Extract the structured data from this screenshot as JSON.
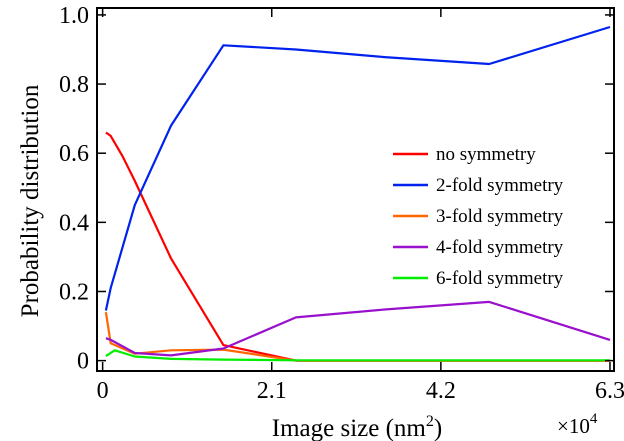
{
  "chart_data": {
    "type": "line",
    "xlabel": "Image size (nm",
    "xlabel_sup": "2",
    "xlabel_close": ")",
    "ylabel": "Probability distribution",
    "x_multiplier": "×10",
    "x_multiplier_sup": "4",
    "xlim": [
      -0.07,
      6.35
    ],
    "ylim": [
      -0.03,
      1.02
    ],
    "x_ticks": [
      0,
      2.1,
      4.2,
      6.3
    ],
    "x_tick_labels": [
      "0",
      "2.1",
      "4.2",
      "6.3"
    ],
    "y_ticks": [
      0,
      0.2,
      0.4,
      0.6,
      0.8,
      1.0
    ],
    "y_tick_labels": [
      "0",
      "0.2",
      "0.4",
      "0.6",
      "0.8",
      "1.0"
    ],
    "grid": false,
    "legend_position": "center-right",
    "series": [
      {
        "name": "no symmetry",
        "color": "#ff0000",
        "points": [
          [
            0.04,
            0.66
          ],
          [
            0.1,
            0.65
          ],
          [
            0.25,
            0.59
          ],
          [
            0.4,
            0.52
          ],
          [
            0.85,
            0.295
          ],
          [
            1.5,
            0.045
          ],
          [
            2.4,
            0.0
          ],
          [
            3.5,
            0.0
          ],
          [
            4.8,
            0.0
          ],
          [
            6.3,
            0.0
          ]
        ]
      },
      {
        "name": "2-fold symmetry",
        "color": "#0022ee",
        "points": [
          [
            0.04,
            0.145
          ],
          [
            0.1,
            0.21
          ],
          [
            0.4,
            0.45
          ],
          [
            0.85,
            0.68
          ],
          [
            1.5,
            0.912
          ],
          [
            2.4,
            0.9
          ],
          [
            3.5,
            0.878
          ],
          [
            4.8,
            0.858
          ],
          [
            6.3,
            0.965
          ]
        ]
      },
      {
        "name": "3-fold symmetry",
        "color": "#ff6600",
        "points": [
          [
            0.04,
            0.14
          ],
          [
            0.1,
            0.05
          ],
          [
            0.4,
            0.02
          ],
          [
            0.85,
            0.03
          ],
          [
            1.5,
            0.032
          ],
          [
            2.4,
            0.0
          ],
          [
            3.5,
            0.0
          ],
          [
            4.8,
            0.0
          ],
          [
            6.3,
            0.0
          ]
        ]
      },
      {
        "name": "4-fold symmetry",
        "color": "#9911cc",
        "points": [
          [
            0.04,
            0.065
          ],
          [
            0.1,
            0.06
          ],
          [
            0.4,
            0.022
          ],
          [
            0.85,
            0.015
          ],
          [
            1.5,
            0.035
          ],
          [
            2.4,
            0.125
          ],
          [
            3.5,
            0.148
          ],
          [
            4.8,
            0.17
          ],
          [
            6.3,
            0.06
          ]
        ]
      },
      {
        "name": "6-fold symmetry",
        "color": "#00ee00",
        "points": [
          [
            0.04,
            0.013
          ],
          [
            0.15,
            0.03
          ],
          [
            0.4,
            0.012
          ],
          [
            0.85,
            0.005
          ],
          [
            1.5,
            0.003
          ],
          [
            2.4,
            0.001
          ],
          [
            3.5,
            0.001
          ],
          [
            4.8,
            0.001
          ],
          [
            6.3,
            0.001
          ]
        ]
      }
    ]
  }
}
